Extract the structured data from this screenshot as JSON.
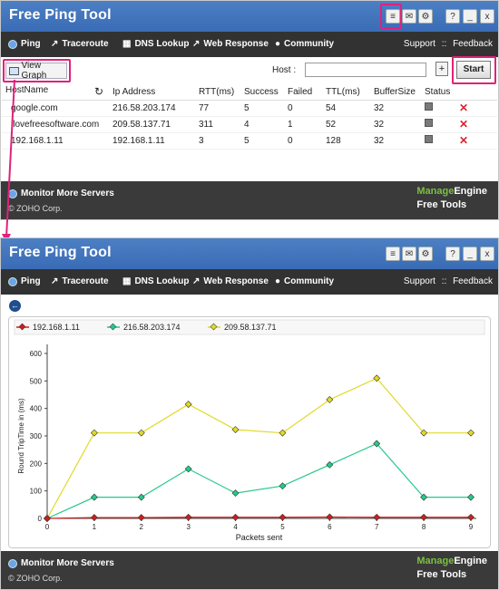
{
  "app": {
    "title": "Free Ping Tool"
  },
  "window_controls": {
    "help": "?",
    "minimize": "_",
    "close": "x"
  },
  "nav": {
    "items": [
      {
        "label": "Ping",
        "icon": "ping-icon"
      },
      {
        "label": "Traceroute",
        "icon": "traceroute-icon"
      },
      {
        "label": "DNS Lookup",
        "icon": "dns-lookup-icon"
      },
      {
        "label": "Web Response",
        "icon": "web-response-icon"
      },
      {
        "label": "Community",
        "icon": "community-icon"
      }
    ],
    "support": "Support",
    "separator": "::",
    "feedback": "Feedback"
  },
  "toolbar": {
    "view_graph": "View Graph",
    "host_label": "Host :",
    "host_value": "",
    "add": "+",
    "start": "Start"
  },
  "table": {
    "columns": [
      "HostName",
      "Ip Address",
      "RTT(ms)",
      "Success",
      "Failed",
      "TTL(ms)",
      "BufferSize",
      "Status"
    ],
    "rows": [
      {
        "host": "google.com",
        "ip": "216.58.203.174",
        "rtt": "77",
        "success": "5",
        "failed": "0",
        "ttl": "54",
        "buffer": "32"
      },
      {
        "host": "ilovefreesoftware.com",
        "ip": "209.58.137.71",
        "rtt": "311",
        "success": "4",
        "failed": "1",
        "ttl": "52",
        "buffer": "32"
      },
      {
        "host": "192.168.1.11",
        "ip": "192.168.1.11",
        "rtt": "3",
        "success": "5",
        "failed": "0",
        "ttl": "128",
        "buffer": "32"
      }
    ]
  },
  "footer": {
    "monitor": "Monitor More Servers",
    "copyright": "© ZOHO Corp.",
    "brand_manage": "Manage",
    "brand_engine": "Engine",
    "brand_sub": "Free Tools"
  },
  "colors": {
    "titlebar": "#3f72bb",
    "highlight": "#e0227a",
    "navbar": "#323232"
  },
  "chart_data": {
    "type": "line",
    "xlabel": "Packets sent",
    "ylabel": "Round TripTime in (ms)",
    "x": [
      0,
      1,
      2,
      3,
      4,
      5,
      6,
      7,
      8,
      9
    ],
    "ylim": [
      0,
      600
    ],
    "yticks": [
      0,
      100,
      200,
      300,
      400,
      500,
      600
    ],
    "grid": false,
    "legend": "top-left",
    "series": [
      {
        "name": "192.168.1.11",
        "color": "#cc1f1f",
        "values": [
          0,
          3,
          3,
          4,
          4,
          4,
          5,
          4,
          4,
          4
        ]
      },
      {
        "name": "216.58.203.174",
        "color": "#26c98a",
        "values": [
          0,
          77,
          77,
          180,
          92,
          118,
          195,
          272,
          77,
          77
        ]
      },
      {
        "name": "209.58.137.71",
        "color": "#e1d92a",
        "values": [
          0,
          311,
          311,
          415,
          323,
          311,
          432,
          510,
          311,
          311
        ]
      }
    ]
  }
}
